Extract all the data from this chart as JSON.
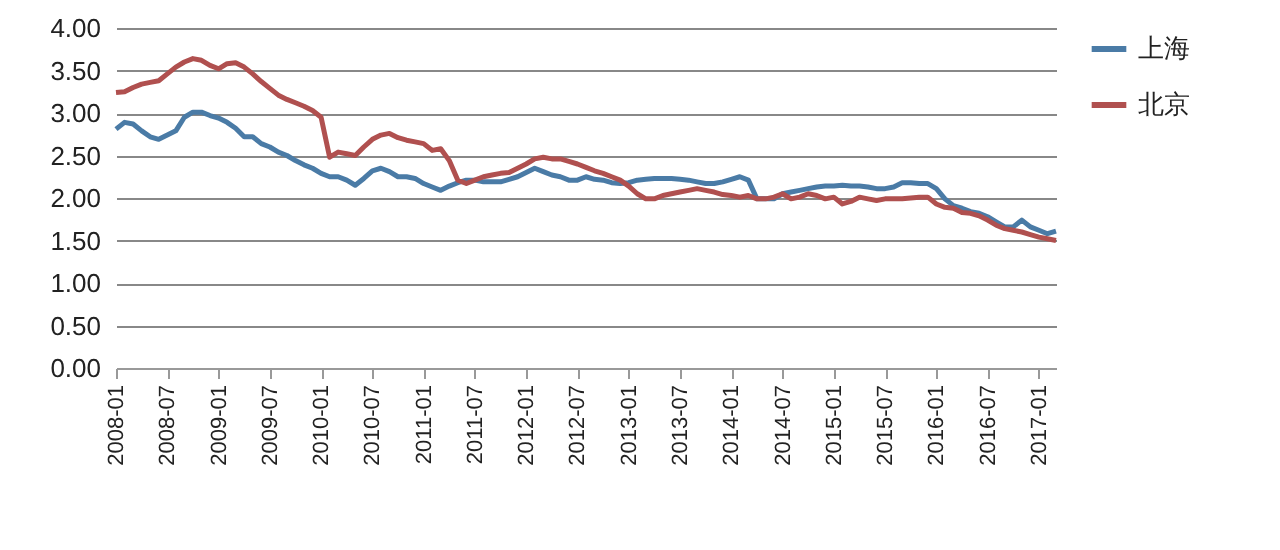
{
  "chart_data": {
    "type": "line",
    "categories": [
      "2008-01",
      null,
      null,
      null,
      null,
      null,
      "2008-07",
      null,
      null,
      null,
      null,
      null,
      "2009-01",
      null,
      null,
      null,
      null,
      null,
      "2009-07",
      null,
      null,
      null,
      null,
      null,
      "2010-01",
      null,
      null,
      null,
      null,
      null,
      "2010-07",
      null,
      null,
      null,
      null,
      null,
      "2011-01",
      null,
      null,
      null,
      null,
      null,
      "2011-07",
      null,
      null,
      null,
      null,
      null,
      "2012-01",
      null,
      null,
      null,
      null,
      null,
      "2012-07",
      null,
      null,
      null,
      null,
      null,
      "2013-01",
      null,
      null,
      null,
      null,
      null,
      "2013-07",
      null,
      null,
      null,
      null,
      null,
      "2014-01",
      null,
      null,
      null,
      null,
      null,
      "2014-07",
      null,
      null,
      null,
      null,
      null,
      "2015-01",
      null,
      null,
      null,
      null,
      null,
      "2015-07",
      null,
      null,
      null,
      null,
      null,
      "2016-01",
      null,
      null,
      null,
      null,
      null,
      "2016-07",
      null,
      null,
      null,
      null,
      null,
      "2017-01",
      null,
      null
    ],
    "series": [
      {
        "name": "上海",
        "color": "#4a7ba6",
        "values": [
          2.81,
          2.89,
          2.87,
          2.79,
          2.72,
          2.69,
          2.74,
          2.79,
          2.95,
          3.01,
          3.01,
          2.97,
          2.94,
          2.89,
          2.82,
          2.72,
          2.72,
          2.64,
          2.6,
          2.54,
          2.5,
          2.44,
          2.39,
          2.35,
          2.29,
          2.25,
          2.25,
          2.21,
          2.15,
          2.23,
          2.32,
          2.35,
          2.31,
          2.25,
          2.25,
          2.23,
          2.17,
          2.13,
          2.09,
          2.14,
          2.18,
          2.21,
          2.21,
          2.19,
          2.19,
          2.19,
          2.22,
          2.25,
          2.3,
          2.35,
          2.31,
          2.27,
          2.25,
          2.21,
          2.21,
          2.25,
          2.22,
          2.21,
          2.18,
          2.17,
          2.18,
          2.21,
          2.22,
          2.23,
          2.23,
          2.23,
          2.22,
          2.21,
          2.19,
          2.17,
          2.17,
          2.19,
          2.22,
          2.25,
          2.21,
          1.99,
          1.99,
          1.99,
          2.05,
          2.07,
          2.09,
          2.11,
          2.13,
          2.14,
          2.14,
          2.15,
          2.14,
          2.14,
          2.13,
          2.11,
          2.11,
          2.13,
          2.18,
          2.18,
          2.17,
          2.17,
          2.11,
          1.99,
          1.91,
          1.88,
          1.84,
          1.82,
          1.78,
          1.72,
          1.66,
          1.66,
          1.74,
          1.66,
          1.62,
          1.58,
          1.61
        ]
      },
      {
        "name": "北京",
        "color": "#b0504f",
        "values": [
          3.24,
          3.25,
          3.3,
          3.34,
          3.36,
          3.38,
          3.46,
          3.54,
          3.6,
          3.64,
          3.62,
          3.56,
          3.52,
          3.58,
          3.59,
          3.54,
          3.46,
          3.37,
          3.29,
          3.21,
          3.16,
          3.12,
          3.08,
          3.03,
          2.95,
          2.48,
          2.54,
          2.52,
          2.5,
          2.6,
          2.69,
          2.74,
          2.76,
          2.71,
          2.68,
          2.66,
          2.64,
          2.56,
          2.58,
          2.44,
          2.21,
          2.17,
          2.21,
          2.25,
          2.27,
          2.29,
          2.3,
          2.35,
          2.4,
          2.46,
          2.48,
          2.46,
          2.46,
          2.43,
          2.4,
          2.36,
          2.32,
          2.29,
          2.25,
          2.21,
          2.14,
          2.05,
          1.99,
          1.99,
          2.03,
          2.05,
          2.07,
          2.09,
          2.11,
          2.09,
          2.07,
          2.04,
          2.03,
          2.01,
          2.03,
          1.99,
          1.99,
          2.01,
          2.05,
          1.99,
          2.01,
          2.05,
          2.03,
          1.99,
          2.01,
          1.93,
          1.96,
          2.01,
          1.99,
          1.97,
          1.99,
          1.99,
          1.99,
          2.0,
          2.01,
          2.01,
          1.93,
          1.89,
          1.88,
          1.83,
          1.82,
          1.79,
          1.74,
          1.68,
          1.64,
          1.62,
          1.6,
          1.57,
          1.54,
          1.52,
          1.5
        ]
      }
    ],
    "ylim": [
      0,
      4
    ],
    "yticks": [
      {
        "value": 0,
        "label": "0.00"
      },
      {
        "value": 0.5,
        "label": "0.50"
      },
      {
        "value": 1,
        "label": "1.00"
      },
      {
        "value": 1.5,
        "label": "1.50"
      },
      {
        "value": 2,
        "label": "2.00"
      },
      {
        "value": 2.5,
        "label": "2.50"
      },
      {
        "value": 3,
        "label": "3.00"
      },
      {
        "value": 3.5,
        "label": "3.50"
      },
      {
        "value": 4,
        "label": "4.00"
      }
    ],
    "grid": "y",
    "legend": "right",
    "marker": "none",
    "line_style": "solid"
  }
}
